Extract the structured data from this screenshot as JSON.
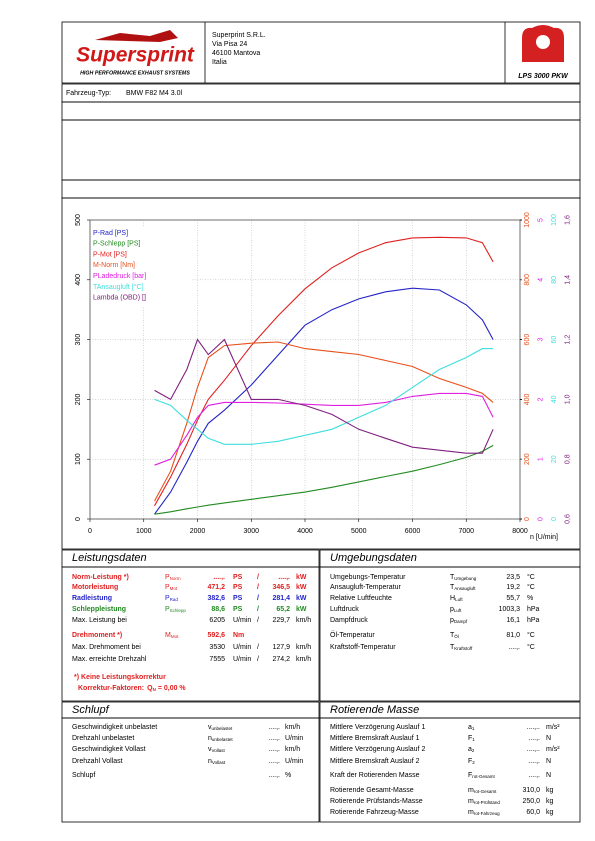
{
  "header": {
    "brand": "Supersprint",
    "tagline": "HIGH PERFORMANCE EXHAUST SYSTEMS",
    "address": [
      "Superprint S.R.L.",
      "Via Pisa 24",
      "46100 Mantova",
      "Italia"
    ],
    "product": "LPS 3000 PKW"
  },
  "vehicle": {
    "label": "Fahrzeug-Typ:",
    "value": "BMW F82 M4 3.0l"
  },
  "chart_data": {
    "type": "line",
    "xlabel": "n [U/min]",
    "legend": "upper left",
    "grid": true,
    "xlim": [
      0,
      8000
    ],
    "xticks": [
      0,
      1000,
      2000,
      3000,
      4000,
      5000,
      6000,
      7000,
      8000
    ],
    "ylim": [
      0,
      500
    ],
    "yticks": [
      0,
      100,
      200,
      300,
      400,
      500
    ],
    "y2lim": [
      0,
      1000
    ],
    "y2ticks": [
      0,
      200,
      400,
      600,
      800,
      1000
    ],
    "y3lim": [
      0,
      5
    ],
    "y3ticks": [
      0,
      1,
      2,
      3,
      4,
      5
    ],
    "y4lim": [
      0,
      100
    ],
    "y4ticks": [
      0,
      20,
      40,
      60,
      80,
      100
    ],
    "y5lim": [
      0.6,
      1.6
    ],
    "y5ticks": [
      {
        "value": 0.6,
        "label": "0,6"
      },
      {
        "value": 0.8,
        "label": "0,8"
      },
      {
        "value": 1.0,
        "label": "1,0"
      },
      {
        "value": 1.2,
        "label": "1,2"
      },
      {
        "value": 1.4,
        "label": "1,4"
      },
      {
        "value": 1.6,
        "label": "1,6"
      }
    ],
    "x": [
      1200,
      1500,
      1800,
      2000,
      2200,
      2500,
      3000,
      3500,
      4000,
      4500,
      5000,
      5500,
      6000,
      6500,
      7000,
      7300,
      7500
    ],
    "series": [
      {
        "name": "P-Rad [PS]",
        "color": "#2424c8",
        "axis": "y",
        "values": [
          8,
          45,
          95,
          130,
          160,
          182,
          224,
          274,
          324,
          350,
          368,
          380,
          386,
          383,
          358,
          333,
          300
        ]
      },
      {
        "name": "P-Schlepp [PS]",
        "color": "#228b22",
        "axis": "y",
        "values": [
          8,
          12,
          17,
          20,
          23,
          27,
          33,
          39,
          45,
          53,
          62,
          71,
          80,
          91,
          103,
          113,
          123
        ]
      },
      {
        "name": "P-Mot [PS]",
        "color": "#e02020",
        "axis": "y",
        "values": [
          22,
          70,
          125,
          165,
          200,
          232,
          290,
          340,
          385,
          420,
          445,
          462,
          470,
          471,
          470,
          462,
          430
        ]
      },
      {
        "name": "M-Norm [Nm]",
        "color": "#e8501a",
        "axis": "y2",
        "values": [
          60,
          160,
          320,
          440,
          540,
          580,
          588,
          592,
          570,
          560,
          550,
          530,
          510,
          470,
          440,
          420,
          390
        ]
      },
      {
        "name": "PLadedruck [bar]",
        "color": "#e020e0",
        "axis": "y3",
        "values": [
          0.9,
          1.0,
          1.4,
          1.7,
          1.9,
          1.95,
          1.95,
          1.94,
          1.92,
          1.9,
          1.9,
          1.95,
          2.05,
          2.1,
          2.1,
          2.05,
          1.7
        ]
      },
      {
        "name": "TAnsaugluft [°C]",
        "color": "#40dede",
        "axis": "y4",
        "values": [
          40,
          38,
          33,
          30,
          27,
          25,
          25,
          26,
          28,
          30,
          34,
          38,
          44,
          50,
          54,
          57,
          57
        ]
      },
      {
        "name": "Lambda (OBD) []",
        "color": "#802080",
        "axis": "y5",
        "values": [
          1.03,
          1.0,
          1.1,
          1.2,
          1.15,
          1.2,
          1.0,
          1.0,
          0.98,
          0.95,
          0.9,
          0.87,
          0.84,
          0.83,
          0.82,
          0.82,
          0.9
        ]
      }
    ]
  },
  "sections": [
    {
      "title": "Leistungsdaten",
      "rows": [
        {
          "label": "Norm-Leistung *)",
          "sym": [
            "P",
            "Norm"
          ],
          "cells": [
            "....,.",
            "PS",
            "/",
            "....,.",
            "kW"
          ],
          "color": "#e02020"
        },
        {
          "label": "Motorleistung",
          "sym": [
            "P",
            "Mot"
          ],
          "cells": [
            "471,2",
            "PS",
            "/",
            "346,5",
            "kW"
          ],
          "color": "#e02020"
        },
        {
          "label": "Radleistung",
          "sym": [
            "P",
            "Rad"
          ],
          "cells": [
            "382,6",
            "PS",
            "/",
            "281,4",
            "kW"
          ],
          "color": "#2424c8"
        },
        {
          "label": "Schleppleistung",
          "sym": [
            "P",
            "Schlepp"
          ],
          "cells": [
            "88,6",
            "PS",
            "/",
            "65,2",
            "kW"
          ],
          "color": "#228b22"
        },
        {
          "label": "Max. Leistung bei",
          "cells": [
            "6205",
            "U/min",
            "/",
            "229,7",
            "km/h"
          ],
          "color": "#000000"
        },
        {
          "label": "Drehmoment *)",
          "sym": [
            "M",
            "Mot"
          ],
          "cells": [
            "592,6",
            "Nm"
          ],
          "color": "#e02020"
        },
        {
          "label": "Max. Drehmoment bei",
          "cells": [
            "3530",
            "U/min",
            "/",
            "127,9",
            "km/h"
          ],
          "color": "#000000"
        },
        {
          "label": "Max. erreichte Drehzahl",
          "cells": [
            "7555",
            "U/min",
            "/",
            "274,2",
            "km/h"
          ],
          "color": "#000000"
        }
      ],
      "note": {
        "line1": "*) Keine Leistungskorrektur",
        "line2": [
          "Korrektur-Faktoren:",
          "Q",
          "N",
          "= 0,00 %"
        ]
      }
    },
    {
      "title": "Umgebungsdaten",
      "rows": [
        {
          "label": "Umgebungs-Temperatur",
          "sym": [
            "T",
            "Umgebung"
          ],
          "cells": [
            "23,5",
            "°C"
          ]
        },
        {
          "label": "Ansaugluft-Temperatur",
          "sym": [
            "T",
            "Ansaugluft"
          ],
          "cells": [
            "19,2",
            "°C"
          ]
        },
        {
          "label": "Relative Luftfeuchte",
          "sym": [
            "H",
            "Luft"
          ],
          "cells": [
            "55,7",
            "%"
          ]
        },
        {
          "label": "Luftdruck",
          "sym": [
            "p",
            "Luft"
          ],
          "cells": [
            "1003,3",
            "hPa"
          ]
        },
        {
          "label": "Dampfdruck",
          "sym": [
            "p",
            "Dampf"
          ],
          "cells": [
            "16,1",
            "hPa"
          ]
        },
        {
          "label": "Öl-Temperatur",
          "sym": [
            "T",
            "Öl"
          ],
          "cells": [
            "81,0",
            "°C"
          ]
        },
        {
          "label": "Kraftstoff-Temperatur",
          "sym": [
            "T",
            "Kraftstoff"
          ],
          "cells": [
            "....,.",
            "°C"
          ]
        }
      ]
    },
    {
      "title": "Schlupf",
      "rows": [
        {
          "label": "Geschwindigkeit unbelastet",
          "sym": [
            "v",
            "unbelastet"
          ],
          "cells": [
            "....,.",
            "km/h"
          ]
        },
        {
          "label": "Drehzahl unbelastet",
          "sym": [
            "n",
            "unbelastet"
          ],
          "cells": [
            "....,.",
            "U/min"
          ]
        },
        {
          "label": "Geschwindigkeit Vollast",
          "sym": [
            "v",
            "Vollast"
          ],
          "cells": [
            "....,.",
            "km/h"
          ]
        },
        {
          "label": "Drehzahl Vollast",
          "sym": [
            "n",
            "Vollast"
          ],
          "cells": [
            "....,.",
            "U/min"
          ]
        },
        {
          "label": "Schlupf",
          "cells": [
            "....,.",
            "%"
          ]
        }
      ]
    },
    {
      "title": "Rotierende Masse",
      "rows": [
        {
          "label": "Mittlere Verzögerung Auslauf 1",
          "sym": [
            "a",
            "1"
          ],
          "cells": [
            "....,..",
            "m/s²"
          ]
        },
        {
          "label": "Mittlere Bremskraft Auslauf 1",
          "sym": [
            "F",
            "1"
          ],
          "cells": [
            "....,.",
            "N"
          ]
        },
        {
          "label": "Mittlere Verzögerung Auslauf 2",
          "sym": [
            "a",
            "2"
          ],
          "cells": [
            "....,..",
            "m/s²"
          ]
        },
        {
          "label": "Mittlere Bremskraft Auslauf 2",
          "sym": [
            "F",
            "2"
          ],
          "cells": [
            "....,.",
            "N"
          ]
        },
        {
          "label": "Kraft der Rotierenden Masse",
          "sym": [
            "F",
            "rot-Gesamt"
          ],
          "cells": [
            "....,.",
            "N"
          ]
        },
        {
          "label": "Rotierende Gesamt-Masse",
          "sym": [
            "m",
            "rot-Gesamt"
          ],
          "cells": [
            "310,0",
            "kg"
          ]
        },
        {
          "label": "Rotierende Prüfstands-Masse",
          "sym": [
            "m",
            "rot-Prüfstand"
          ],
          "cells": [
            "250,0",
            "kg"
          ]
        },
        {
          "label": "Rotierende Fahrzeug-Masse",
          "sym": [
            "m",
            "rot-Fahrzeug"
          ],
          "cells": [
            "60,0",
            "kg"
          ]
        }
      ]
    }
  ]
}
